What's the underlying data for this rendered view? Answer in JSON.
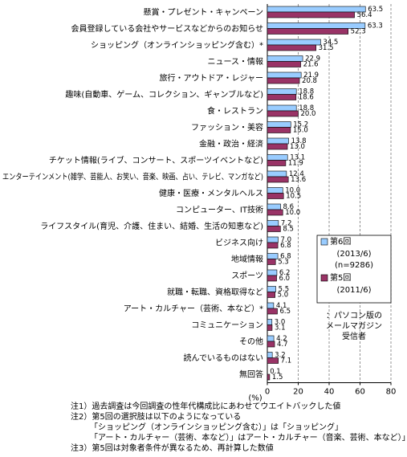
{
  "chart_data": {
    "type": "bar",
    "orientation": "horizontal",
    "categories": [
      "懸賞・プレゼント・キャンペーン",
      "会員登録している会社やサービスなどからのお知らせ",
      "ショッピング（オンラインショッピング含む）*",
      "ニュース・情報",
      "旅行・アウトドア・レジャー",
      "趣味(自動車、ゲーム、コレクション、ギャンブルなど)",
      "食・レストラン",
      "ファッション・美容",
      "金融・政治・経済",
      "チケット情報(ライブ、コンサート、スポーツイベントなど)",
      "エンターテインメント(雑学、芸能人、お笑い、音楽、映画、占い、テレビ、マンガなど)",
      "健康・医療・メンタルヘルス",
      "コンピューター、IT技術",
      "ライフスタイル(育児、介護、住まい、結婚、生活の知恵など)",
      "ビジネス向け",
      "地域情報",
      "スポーツ",
      "就職・転職、資格取得など",
      "アート・カルチャー（芸術、本など）*",
      "コミュニケーション",
      "その他",
      "読んでいるものはない",
      "無回答"
    ],
    "series": [
      {
        "name": "第6回",
        "period": "(2013/6)",
        "n": "(n=9286)",
        "color": "#99ccff",
        "values": [
          63.5,
          63.3,
          34.5,
          22.9,
          21.9,
          18.8,
          18.8,
          15.2,
          13.8,
          13.1,
          12.4,
          10.0,
          8.6,
          7.2,
          7.0,
          6.8,
          6.2,
          5.5,
          4.1,
          3.0,
          4.2,
          3.2,
          0.1
        ],
        "value_labels": [
          "63.5",
          "63.3",
          "34.5",
          "22.9",
          "21.9",
          "18.8",
          "18.8",
          "15.2",
          "13.8",
          "13.1",
          "12.4",
          "10.0",
          "8.6",
          "7.2",
          "7.0",
          "6.8",
          "6.2",
          "5.5",
          "4.1",
          "3.0",
          "4.2",
          "3.2",
          "0.1"
        ]
      },
      {
        "name": "第5回",
        "period": "(2011/6)",
        "color": "#993366",
        "values": [
          56.4,
          52.3,
          31.5,
          21.6,
          20.8,
          18.6,
          20.0,
          15.0,
          13.0,
          11.9,
          13.6,
          10.5,
          10.0,
          8.5,
          6.8,
          5.3,
          6.0,
          5.0,
          6.5,
          3.1,
          4.7,
          7.1,
          1.5
        ],
        "value_labels": [
          "56.4",
          "52.3",
          "31.5",
          "21.6",
          "20.8",
          "18.6",
          "20.0",
          "15.0",
          "13.0",
          "11.9",
          "13.6",
          "10.5",
          "10.0",
          "8.5",
          "6.8",
          "5.3",
          "6.0",
          "5.0",
          "6.5",
          "3.1",
          "4.7",
          "7.1",
          "1.5"
        ]
      }
    ],
    "xlim": [
      0,
      80
    ],
    "xticks": [
      0,
      20,
      40,
      60,
      80
    ],
    "xlabel": "(%)",
    "grid": true,
    "annotation": [
      "：パソコン版の",
      "メールマガジン",
      "受信者"
    ],
    "notes": [
      "注1）過去調査は今回調査の性年代構成比にあわせてウエイトバックした値",
      "注2）第5回の選択肢は以下のようになっている",
      "「ショッピング（オンラインショッピング含む）」は「ショッピング」",
      "「アート・カルチャー（芸術、本など）」はアート・カルチャー（音楽、芸術、本など）」",
      "注3）第5回は対象者条件が異なるため、再計算した数値"
    ]
  }
}
